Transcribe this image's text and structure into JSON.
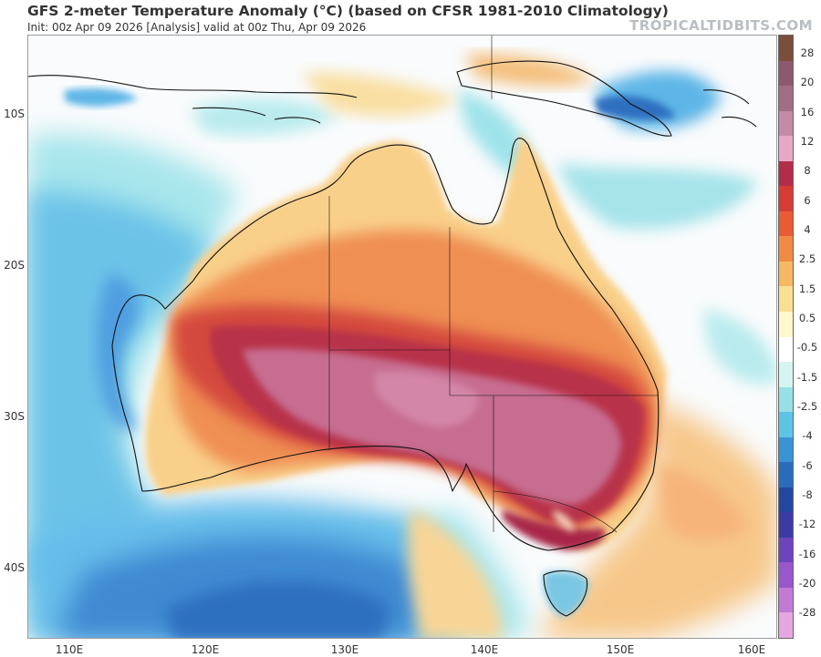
{
  "header": {
    "title": "GFS 2-meter Temperature Anomaly (°C) (based on CFSR 1981-2010 Climatology)",
    "subtitle": "Init: 00z Apr 09 2026   [Analysis]   valid at 00z Thu, Apr 09 2026",
    "watermark": "TROPICALTIDBITS.COM"
  },
  "map": {
    "lat_labels": [
      "10S",
      "20S",
      "30S",
      "40S"
    ],
    "lon_labels": [
      "110E",
      "120E",
      "130E",
      "140E",
      "150E",
      "160E"
    ]
  },
  "colorbar": {
    "tick_labels": [
      "28",
      "20",
      "16",
      "12",
      "8",
      "6",
      "4",
      "2.5",
      "1.5",
      "0.5",
      "-0.5",
      "-1.5",
      "-2.5",
      "-4",
      "-6",
      "-8",
      "-12",
      "-16",
      "-20",
      "-28"
    ],
    "colors": [
      "#7a4e3a",
      "#8b5a6e",
      "#a16f85",
      "#c48aa6",
      "#e7a8c5",
      "#b32d4a",
      "#d63c35",
      "#ea5a33",
      "#f08a45",
      "#f7b763",
      "#f9df92",
      "#fff8cf",
      "#ffffff",
      "#d5f3f1",
      "#96e0e6",
      "#5ec4e6",
      "#3a93d4",
      "#2a6cbc",
      "#23469e",
      "#3b3aa3",
      "#6e44bd",
      "#9a56cd",
      "#c27ad7",
      "#e6a7e0"
    ]
  },
  "colors": {
    "ocean_base": "#f9fbfc",
    "cool_shallow": "#9fe3ea",
    "cool_mid": "#5cb8e6",
    "cool_deep": "#3c86cf",
    "warm_light": "#f9d58a",
    "warm_mid": "#ef8a4e",
    "warm_strong": "#d84a3d",
    "warm_extreme": "#b7344e",
    "warm_core": "#c26a8c"
  }
}
